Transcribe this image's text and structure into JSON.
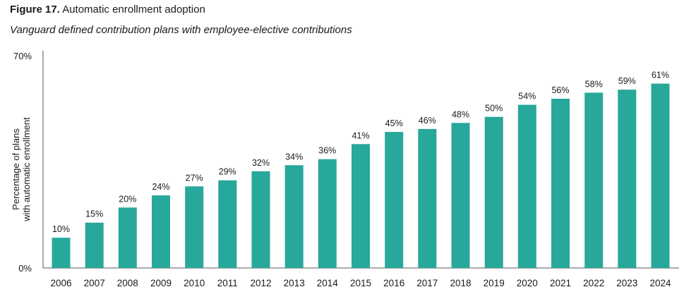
{
  "figure_label": "Figure 17.",
  "title": "Automatic enrollment adoption",
  "subtitle": "Vanguard defined contribution plans with employee-elective contributions",
  "chart_data": {
    "type": "bar",
    "categories": [
      "2006",
      "2007",
      "2008",
      "2009",
      "2010",
      "2011",
      "2012",
      "2013",
      "2014",
      "2015",
      "2016",
      "2017",
      "2018",
      "2019",
      "2020",
      "2021",
      "2022",
      "2023",
      "2024"
    ],
    "values": [
      10,
      15,
      20,
      24,
      27,
      29,
      32,
      34,
      36,
      41,
      45,
      46,
      48,
      50,
      54,
      56,
      58,
      59,
      61
    ],
    "value_labels": [
      "10%",
      "15%",
      "20%",
      "24%",
      "27%",
      "29%",
      "32%",
      "34%",
      "36%",
      "41%",
      "45%",
      "46%",
      "48%",
      "50%",
      "54%",
      "56%",
      "58%",
      "59%",
      "61%"
    ],
    "ylabel_lines": [
      "Percentage of plans",
      "with automatic enrollment"
    ],
    "ylim": [
      0,
      70
    ],
    "yticks": [
      0,
      70
    ],
    "ytick_labels": [
      "0%",
      "70%"
    ],
    "grid": false,
    "bar_color": "#27a89a"
  }
}
